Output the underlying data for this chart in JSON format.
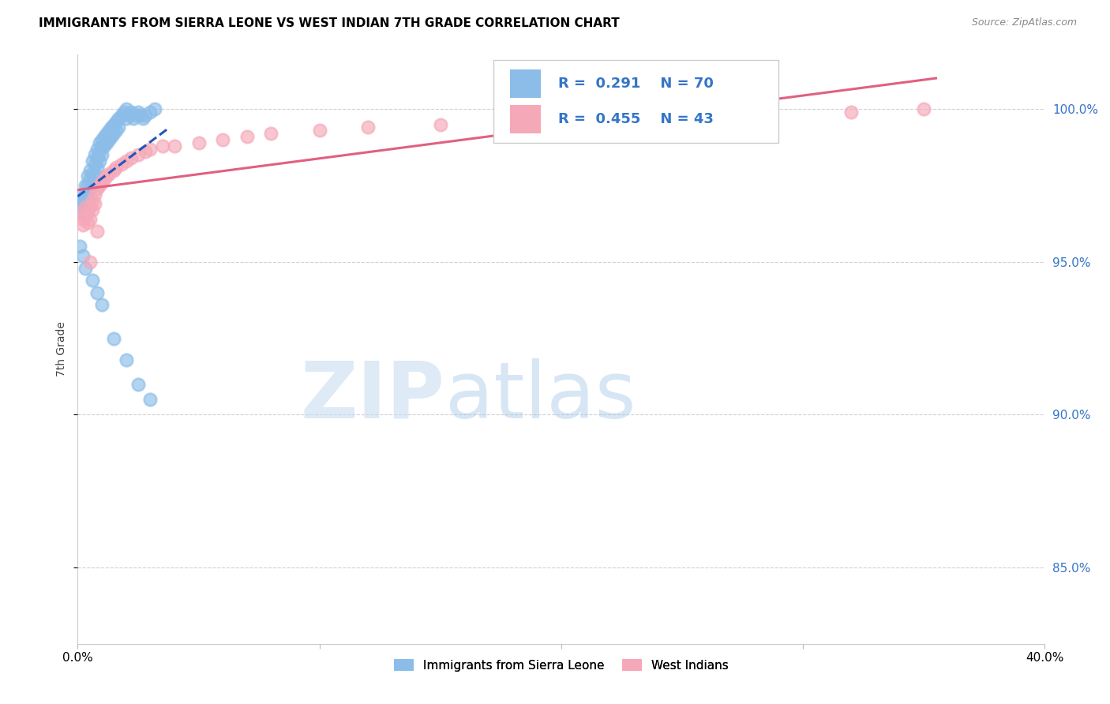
{
  "title": "IMMIGRANTS FROM SIERRA LEONE VS WEST INDIAN 7TH GRADE CORRELATION CHART",
  "source": "Source: ZipAtlas.com",
  "ylabel": "7th Grade",
  "ytick_labels": [
    "85.0%",
    "90.0%",
    "95.0%",
    "100.0%"
  ],
  "ytick_values": [
    0.85,
    0.9,
    0.95,
    1.0
  ],
  "xmin": 0.0,
  "xmax": 0.4,
  "ymin": 0.825,
  "ymax": 1.018,
  "legend_r1": "0.291",
  "legend_n1": "70",
  "legend_r2": "0.455",
  "legend_n2": "43",
  "color_blue": "#8bbde8",
  "color_pink": "#f5a8b8",
  "color_blue_line": "#2255bb",
  "color_pink_line": "#e06080",
  "color_blue_text": "#3575c8",
  "color_grid": "#cccccc",
  "legend1_label": "Immigrants from Sierra Leone",
  "legend2_label": "West Indians",
  "sl_x": [
    0.0005,
    0.001,
    0.0015,
    0.002,
    0.002,
    0.002,
    0.003,
    0.003,
    0.003,
    0.003,
    0.004,
    0.004,
    0.004,
    0.004,
    0.005,
    0.005,
    0.005,
    0.006,
    0.006,
    0.006,
    0.007,
    0.007,
    0.007,
    0.008,
    0.008,
    0.008,
    0.009,
    0.009,
    0.009,
    0.01,
    0.01,
    0.01,
    0.011,
    0.011,
    0.012,
    0.012,
    0.013,
    0.013,
    0.014,
    0.014,
    0.015,
    0.015,
    0.016,
    0.016,
    0.017,
    0.017,
    0.018,
    0.019,
    0.02,
    0.02,
    0.021,
    0.022,
    0.023,
    0.024,
    0.025,
    0.026,
    0.027,
    0.028,
    0.03,
    0.032,
    0.001,
    0.002,
    0.003,
    0.006,
    0.008,
    0.01,
    0.015,
    0.02,
    0.025,
    0.03
  ],
  "sl_y": [
    0.969,
    0.97,
    0.972,
    0.971,
    0.968,
    0.966,
    0.975,
    0.972,
    0.97,
    0.968,
    0.978,
    0.975,
    0.972,
    0.97,
    0.98,
    0.977,
    0.974,
    0.983,
    0.979,
    0.976,
    0.985,
    0.982,
    0.979,
    0.987,
    0.984,
    0.981,
    0.989,
    0.986,
    0.983,
    0.99,
    0.988,
    0.985,
    0.991,
    0.988,
    0.992,
    0.989,
    0.993,
    0.99,
    0.994,
    0.991,
    0.995,
    0.992,
    0.996,
    0.993,
    0.997,
    0.994,
    0.998,
    0.999,
    1.0,
    0.997,
    0.998,
    0.999,
    0.997,
    0.998,
    0.999,
    0.998,
    0.997,
    0.998,
    0.999,
    1.0,
    0.955,
    0.952,
    0.948,
    0.944,
    0.94,
    0.936,
    0.925,
    0.918,
    0.91,
    0.905
  ],
  "wi_x": [
    0.001,
    0.002,
    0.002,
    0.003,
    0.003,
    0.004,
    0.004,
    0.005,
    0.005,
    0.006,
    0.006,
    0.007,
    0.007,
    0.008,
    0.009,
    0.01,
    0.011,
    0.012,
    0.013,
    0.015,
    0.016,
    0.018,
    0.02,
    0.022,
    0.025,
    0.028,
    0.03,
    0.035,
    0.04,
    0.05,
    0.06,
    0.07,
    0.08,
    0.1,
    0.12,
    0.15,
    0.2,
    0.25,
    0.28,
    0.32,
    0.35,
    0.005,
    0.008
  ],
  "wi_y": [
    0.966,
    0.964,
    0.962,
    0.968,
    0.965,
    0.966,
    0.963,
    0.968,
    0.964,
    0.97,
    0.967,
    0.972,
    0.969,
    0.974,
    0.975,
    0.976,
    0.977,
    0.978,
    0.979,
    0.98,
    0.981,
    0.982,
    0.983,
    0.984,
    0.985,
    0.986,
    0.987,
    0.988,
    0.988,
    0.989,
    0.99,
    0.991,
    0.992,
    0.993,
    0.994,
    0.995,
    0.996,
    0.997,
    0.998,
    0.999,
    1.0,
    0.95,
    0.96
  ]
}
